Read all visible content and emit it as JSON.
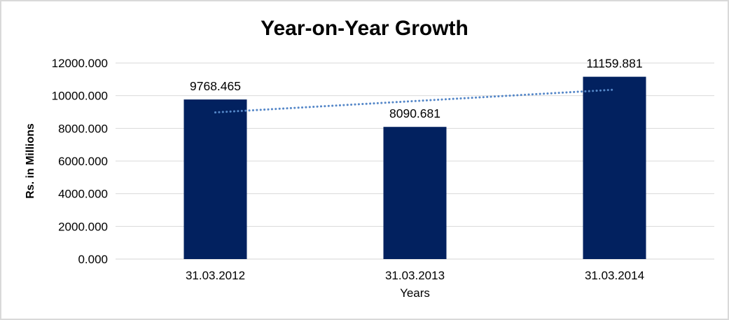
{
  "chart_data": {
    "type": "bar",
    "title": "Year-on-Year Growth",
    "xlabel": "Years",
    "ylabel": "Rs. in Millions",
    "categories": [
      "31.03.2012",
      "31.03.2013",
      "31.03.2014"
    ],
    "values": [
      9768.465,
      8090.681,
      11159.881
    ],
    "data_labels": [
      "9768.465",
      "8090.681",
      "11159.881"
    ],
    "ylim": [
      0,
      12000
    ],
    "yticks": [
      0,
      2000,
      4000,
      6000,
      8000,
      10000,
      12000
    ],
    "ytick_labels": [
      "0.000",
      "2000.000",
      "4000.000",
      "6000.000",
      "8000.000",
      "10000.000",
      "12000.000"
    ],
    "grid": true,
    "legend": "none",
    "trendline": {
      "type": "linear",
      "style": "dotted"
    },
    "colors": {
      "bar": "#02215F",
      "trendline": "#5587C8",
      "gridline": "#D9D9D9",
      "axis_line": "#D6D6D6",
      "text": "#000000",
      "frame_border": "#D9D9D9",
      "background": "#FFFFFF"
    }
  }
}
